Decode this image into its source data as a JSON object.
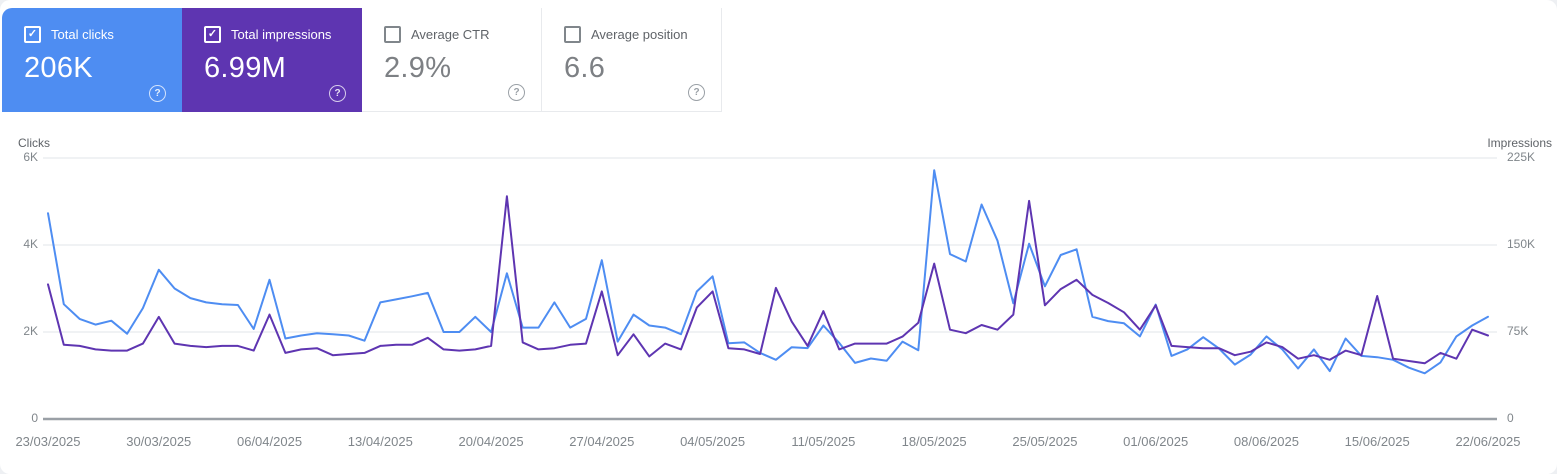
{
  "icons": {
    "check": "✓",
    "help": "?"
  },
  "cards": [
    {
      "label": "Total clicks",
      "value": "206K",
      "checked": true,
      "bg": "#4e8df2"
    },
    {
      "label": "Total impressions",
      "value": "6.99M",
      "checked": true,
      "bg": "#5e35b1"
    },
    {
      "label": "Average CTR",
      "value": "2.9%",
      "checked": false
    },
    {
      "label": "Average position",
      "value": "6.6",
      "checked": false
    }
  ],
  "chart_data": {
    "type": "line",
    "x_range": [
      "23/03/2025",
      "22/06/2025"
    ],
    "x_tick_labels": [
      "23/03/2025",
      "30/03/2025",
      "06/04/2025",
      "13/04/2025",
      "20/04/2025",
      "27/04/2025",
      "04/05/2025",
      "11/05/2025",
      "18/05/2025",
      "25/05/2025",
      "01/06/2025",
      "08/06/2025",
      "15/06/2025",
      "22/06/2025"
    ],
    "left_axis": {
      "title": "Clicks",
      "ticks": [
        "6K",
        "4K",
        "2K",
        "0"
      ],
      "max": 6000
    },
    "right_axis": {
      "title": "Impressions",
      "ticks": [
        "225K",
        "150K",
        "75K",
        "0"
      ],
      "max": 225000
    },
    "grid": "horizontal-only",
    "series": [
      {
        "name": "Total clicks",
        "axis": "left",
        "color": "#4e8df2",
        "values": [
          4730,
          2640,
          2300,
          2170,
          2260,
          1960,
          2550,
          3430,
          3000,
          2780,
          2680,
          2640,
          2620,
          2070,
          3200,
          1850,
          1920,
          1970,
          1950,
          1920,
          1800,
          2680,
          2750,
          2820,
          2900,
          2000,
          2000,
          2350,
          2000,
          3350,
          2100,
          2100,
          2680,
          2100,
          2300,
          3650,
          1780,
          2400,
          2150,
          2100,
          1950,
          2930,
          3280,
          1740,
          1760,
          1520,
          1360,
          1650,
          1630,
          2150,
          1750,
          1290,
          1390,
          1340,
          1780,
          1580,
          5720,
          3790,
          3620,
          4930,
          4100,
          2660,
          4030,
          3050,
          3770,
          3900,
          2350,
          2250,
          2200,
          1900,
          2630,
          1450,
          1600,
          1880,
          1620,
          1250,
          1480,
          1900,
          1600,
          1160,
          1600,
          1100,
          1850,
          1450,
          1420,
          1360,
          1180,
          1050,
          1300,
          1900,
          2150,
          2350
        ]
      },
      {
        "name": "Total impressions",
        "axis": "right",
        "color": "#5e35b1",
        "values": [
          116000,
          64000,
          63000,
          60000,
          59000,
          59000,
          65000,
          88000,
          65000,
          63000,
          62000,
          63000,
          63000,
          59000,
          90000,
          57000,
          60000,
          61000,
          55000,
          56000,
          57000,
          63000,
          64000,
          64000,
          70000,
          60000,
          59000,
          60000,
          63000,
          192000,
          66000,
          60000,
          61000,
          64000,
          65000,
          110000,
          55000,
          73000,
          54000,
          65000,
          60000,
          96000,
          110000,
          61000,
          60000,
          56000,
          113000,
          84000,
          63000,
          93000,
          60000,
          65000,
          65000,
          65000,
          71000,
          83000,
          134000,
          77000,
          74000,
          81000,
          77000,
          90000,
          188000,
          98000,
          112000,
          120000,
          107000,
          100000,
          92000,
          77000,
          98000,
          63000,
          62000,
          61000,
          61000,
          55000,
          58000,
          66000,
          62000,
          52000,
          55000,
          51000,
          59000,
          55000,
          106000,
          52000,
          50000,
          48000,
          57000,
          52000,
          77000,
          72000
        ]
      }
    ]
  }
}
